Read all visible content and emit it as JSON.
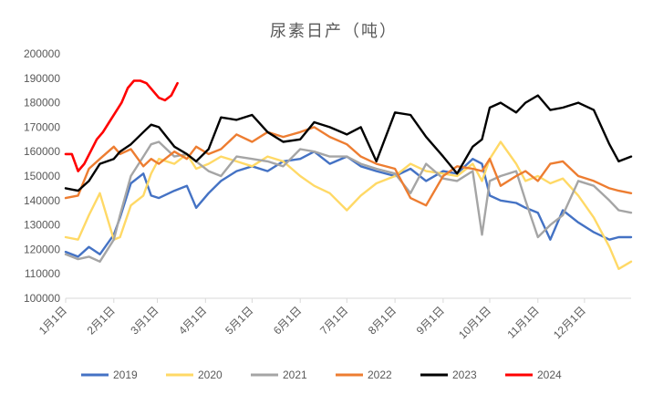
{
  "chart_data": {
    "type": "line",
    "title": "尿素日产（吨）",
    "xlabel": "",
    "ylabel": "",
    "ylim": [
      100000,
      200000
    ],
    "yticks": [
      100000,
      110000,
      120000,
      130000,
      140000,
      150000,
      160000,
      170000,
      180000,
      190000,
      200000
    ],
    "x_tick_labels": [
      "1月1日",
      "2月1日",
      "3月1日",
      "4月1日",
      "5月1日",
      "6月1日",
      "7月1日",
      "8月1日",
      "9月1日",
      "10月1日",
      "11月1日",
      "12月1日"
    ],
    "x_tick_days": [
      0,
      31,
      59,
      90,
      120,
      151,
      181,
      212,
      243,
      273,
      304,
      334
    ],
    "xlim_days": [
      0,
      364
    ],
    "grid": false,
    "legend": "bottom",
    "series": [
      {
        "name": "2019",
        "color": "#4472C4",
        "x": [
          0,
          8,
          15,
          22,
          31,
          35,
          42,
          50,
          55,
          60,
          70,
          78,
          84,
          92,
          100,
          110,
          120,
          130,
          140,
          151,
          160,
          170,
          181,
          190,
          200,
          212,
          222,
          232,
          243,
          252,
          262,
          268,
          273,
          280,
          290,
          296,
          304,
          312,
          320,
          330,
          340,
          350,
          356,
          364
        ],
        "values": [
          119000,
          117000,
          121000,
          118000,
          126000,
          133000,
          147000,
          151000,
          142000,
          141000,
          144000,
          146000,
          137000,
          143000,
          148000,
          152000,
          154000,
          152000,
          156000,
          157000,
          160000,
          155000,
          158000,
          154000,
          152000,
          150000,
          153000,
          148000,
          152000,
          151000,
          157000,
          155000,
          142000,
          140000,
          139000,
          137000,
          135000,
          124000,
          136000,
          131000,
          127000,
          124000,
          125000,
          125000
        ]
      },
      {
        "name": "2020",
        "color": "#FFD966",
        "x": [
          0,
          8,
          15,
          22,
          31,
          35,
          42,
          50,
          55,
          60,
          70,
          78,
          84,
          92,
          100,
          110,
          120,
          130,
          140,
          151,
          160,
          170,
          181,
          190,
          200,
          212,
          222,
          232,
          243,
          252,
          262,
          268,
          273,
          280,
          290,
          296,
          304,
          312,
          320,
          330,
          340,
          350,
          356,
          364
        ],
        "values": [
          125000,
          124000,
          134000,
          143000,
          124000,
          125000,
          138000,
          142000,
          151000,
          157000,
          155000,
          159000,
          153000,
          155000,
          158000,
          156000,
          154000,
          158000,
          156000,
          150000,
          146000,
          143000,
          136000,
          142000,
          147000,
          150000,
          155000,
          152000,
          151000,
          150000,
          155000,
          148000,
          157000,
          164000,
          155000,
          148000,
          150000,
          147000,
          149000,
          142000,
          133000,
          121000,
          112000,
          115000
        ]
      },
      {
        "name": "2021",
        "color": "#A5A5A5",
        "x": [
          0,
          8,
          15,
          22,
          31,
          35,
          42,
          50,
          55,
          60,
          70,
          78,
          84,
          92,
          100,
          110,
          120,
          130,
          140,
          151,
          160,
          170,
          181,
          190,
          200,
          212,
          222,
          232,
          243,
          252,
          262,
          268,
          273,
          280,
          290,
          296,
          304,
          312,
          320,
          330,
          340,
          350,
          356,
          364
        ],
        "values": [
          118000,
          116000,
          117000,
          115000,
          124000,
          134000,
          150000,
          158000,
          163000,
          164000,
          158000,
          159000,
          156000,
          152000,
          150000,
          158000,
          157000,
          156000,
          154000,
          161000,
          160000,
          158000,
          158000,
          155000,
          153000,
          151000,
          143000,
          155000,
          149000,
          148000,
          152000,
          126000,
          148000,
          150000,
          152000,
          140000,
          125000,
          130000,
          134000,
          148000,
          146000,
          140000,
          136000,
          135000
        ]
      },
      {
        "name": "2022",
        "color": "#ED7D31",
        "x": [
          0,
          8,
          15,
          22,
          31,
          35,
          42,
          50,
          55,
          60,
          70,
          78,
          84,
          92,
          100,
          110,
          120,
          130,
          140,
          151,
          160,
          170,
          181,
          190,
          200,
          212,
          222,
          232,
          243,
          252,
          262,
          268,
          273,
          280,
          290,
          296,
          304,
          312,
          320,
          330,
          340,
          350,
          356,
          364
        ],
        "values": [
          141000,
          142000,
          153000,
          157000,
          162000,
          159000,
          161000,
          154000,
          157000,
          155000,
          160000,
          157000,
          162000,
          159000,
          161000,
          167000,
          164000,
          168000,
          166000,
          168000,
          170000,
          166000,
          163000,
          158000,
          155000,
          153000,
          141000,
          138000,
          150000,
          154000,
          153000,
          152000,
          157000,
          146000,
          150000,
          152000,
          148000,
          155000,
          156000,
          150000,
          148000,
          145000,
          144000,
          143000
        ]
      },
      {
        "name": "2023",
        "color": "#000000",
        "x": [
          0,
          8,
          15,
          22,
          31,
          35,
          42,
          50,
          55,
          60,
          70,
          78,
          84,
          92,
          100,
          110,
          120,
          130,
          140,
          151,
          160,
          170,
          181,
          190,
          200,
          212,
          222,
          232,
          243,
          252,
          262,
          268,
          273,
          280,
          290,
          296,
          304,
          312,
          320,
          330,
          340,
          350,
          356,
          364
        ],
        "values": [
          145000,
          144000,
          148000,
          155000,
          157000,
          160000,
          163000,
          168000,
          171000,
          170000,
          162000,
          159000,
          156000,
          161000,
          174000,
          173000,
          175000,
          168000,
          164000,
          165000,
          172000,
          170000,
          167000,
          170000,
          156000,
          176000,
          175000,
          166000,
          158000,
          151000,
          162000,
          165000,
          178000,
          180000,
          176000,
          180000,
          183000,
          177000,
          178000,
          180000,
          177000,
          163000,
          156000,
          158000
        ]
      },
      {
        "name": "2024",
        "color": "#FF0000",
        "x": [
          0,
          4,
          8,
          12,
          16,
          20,
          24,
          28,
          32,
          36,
          40,
          44,
          48,
          52,
          56,
          60,
          64,
          68,
          72
        ],
        "values": [
          159000,
          159000,
          152000,
          155000,
          160000,
          165000,
          168000,
          172000,
          176000,
          180000,
          186000,
          189000,
          189000,
          188000,
          185000,
          182000,
          181000,
          183000,
          188000
        ]
      }
    ]
  }
}
